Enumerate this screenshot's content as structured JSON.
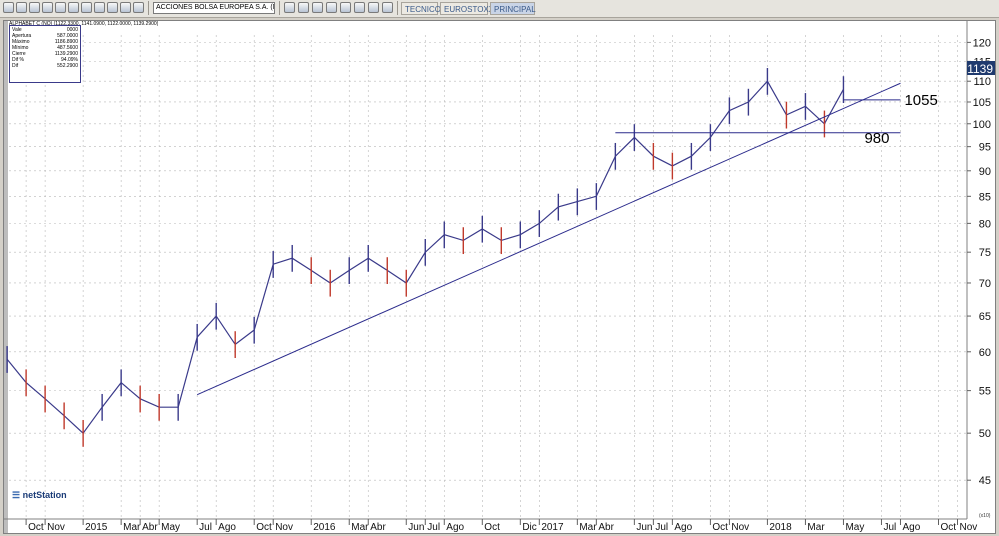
{
  "toolbar": {
    "symbol": "ACCIONES BOLSA EUROPEA S.A. (MERCADO CONTINUO)",
    "tabs": [
      {
        "label": "TECNICO",
        "active": false
      },
      {
        "label": "EUROSTOXX",
        "active": false
      },
      {
        "label": "PRINCIPAL",
        "active": true
      }
    ]
  },
  "info_box": {
    "title": "ALPHABET C (NQ) (1122.3300, 1141.0900, 1122.0000, 1139.2900)",
    "rows": [
      {
        "label": "Vale",
        "value": "0000"
      },
      {
        "label": "Apertura",
        "value": "587.0000"
      },
      {
        "label": "Máximo",
        "value": "1186.8900"
      },
      {
        "label": "Mínimo",
        "value": "487.5600"
      },
      {
        "label": "Cierre",
        "value": "1139.2900"
      },
      {
        "label": "Dif %",
        "value": "94.09%"
      },
      {
        "label": "Dif",
        "value": "552.2900"
      }
    ]
  },
  "brand": {
    "text": "netStation"
  },
  "annotations": [
    {
      "label": "1055",
      "value": 105.5
    },
    {
      "label": "980",
      "value": 98
    }
  ],
  "last_price_label": "1139",
  "unit_label": "(x10)",
  "colors": {
    "bullish": "#3a3a8a",
    "bearish": "#c0392b",
    "trendline": "#2b2b8c",
    "last_price_bg": "#1f3a6e"
  },
  "chart_data": {
    "type": "line",
    "title": "",
    "ylabel": "",
    "yscale": "log",
    "ylim": [
      42,
      122
    ],
    "y_ticks": [
      45,
      50,
      55,
      60,
      65,
      70,
      75,
      80,
      85,
      90,
      95,
      100,
      105,
      110,
      115,
      120
    ],
    "x_ticks": [
      "Oct",
      "Nov",
      "2015",
      "Mar",
      "Abr",
      "May",
      "Jul",
      "Ago",
      "Oct",
      "Nov",
      "2016",
      "Mar",
      "Abr",
      "Jun",
      "Jul",
      "Ago",
      "Oct",
      "Dic",
      "2017",
      "Mar",
      "Abr",
      "Jun",
      "Jul",
      "Ago",
      "Oct",
      "Nov",
      "2018",
      "Mar",
      "May",
      "Jul",
      "Ago",
      "Oct",
      "Nov"
    ],
    "x_tick_dates": [
      "2014-10",
      "2014-11",
      "2015-01",
      "2015-03",
      "2015-04",
      "2015-05",
      "2015-07",
      "2015-08",
      "2015-10",
      "2015-11",
      "2016-01",
      "2016-03",
      "2016-04",
      "2016-06",
      "2016-07",
      "2016-08",
      "2016-10",
      "2016-12",
      "2017-01",
      "2017-03",
      "2017-04",
      "2017-06",
      "2017-07",
      "2017-08",
      "2017-10",
      "2017-11",
      "2018-01",
      "2018-03",
      "2018-05",
      "2018-07",
      "2018-08",
      "2018-10",
      "2018-11"
    ],
    "series": [
      {
        "x": [
          "2014-09",
          "2014-10",
          "2014-11",
          "2014-12",
          "2015-01",
          "2015-02",
          "2015-03",
          "2015-04",
          "2015-05",
          "2015-06",
          "2015-07",
          "2015-08",
          "2015-09",
          "2015-10",
          "2015-11",
          "2015-12",
          "2016-01",
          "2016-02",
          "2016-03",
          "2016-04",
          "2016-05",
          "2016-06",
          "2016-07",
          "2016-08",
          "2016-09",
          "2016-10",
          "2016-11",
          "2016-12",
          "2017-01",
          "2017-02",
          "2017-03",
          "2017-04",
          "2017-05",
          "2017-06",
          "2017-07",
          "2017-08",
          "2017-09",
          "2017-10",
          "2017-11",
          "2017-12",
          "2018-01",
          "2018-02",
          "2018-03",
          "2018-04",
          "2018-05"
        ],
        "values": [
          59,
          56,
          54,
          52,
          50,
          53,
          56,
          54,
          53,
          53,
          62,
          65,
          61,
          63,
          73,
          74,
          72,
          70,
          72,
          74,
          72,
          70,
          75,
          78,
          77,
          79,
          77,
          78,
          80,
          83,
          84,
          85,
          93,
          97,
          93,
          91,
          93,
          97,
          103,
          105,
          110,
          102,
          104,
          100,
          108
        ]
      }
    ],
    "trendline": {
      "x": [
        "2015-07",
        "2018-08"
      ],
      "y": [
        54.5,
        109.5
      ]
    },
    "horizontal_lines": [
      {
        "x": [
          "2017-05",
          "2018-08"
        ],
        "y": 98
      },
      {
        "x": [
          "2018-05",
          "2018-08"
        ],
        "y": 105.5
      }
    ]
  }
}
